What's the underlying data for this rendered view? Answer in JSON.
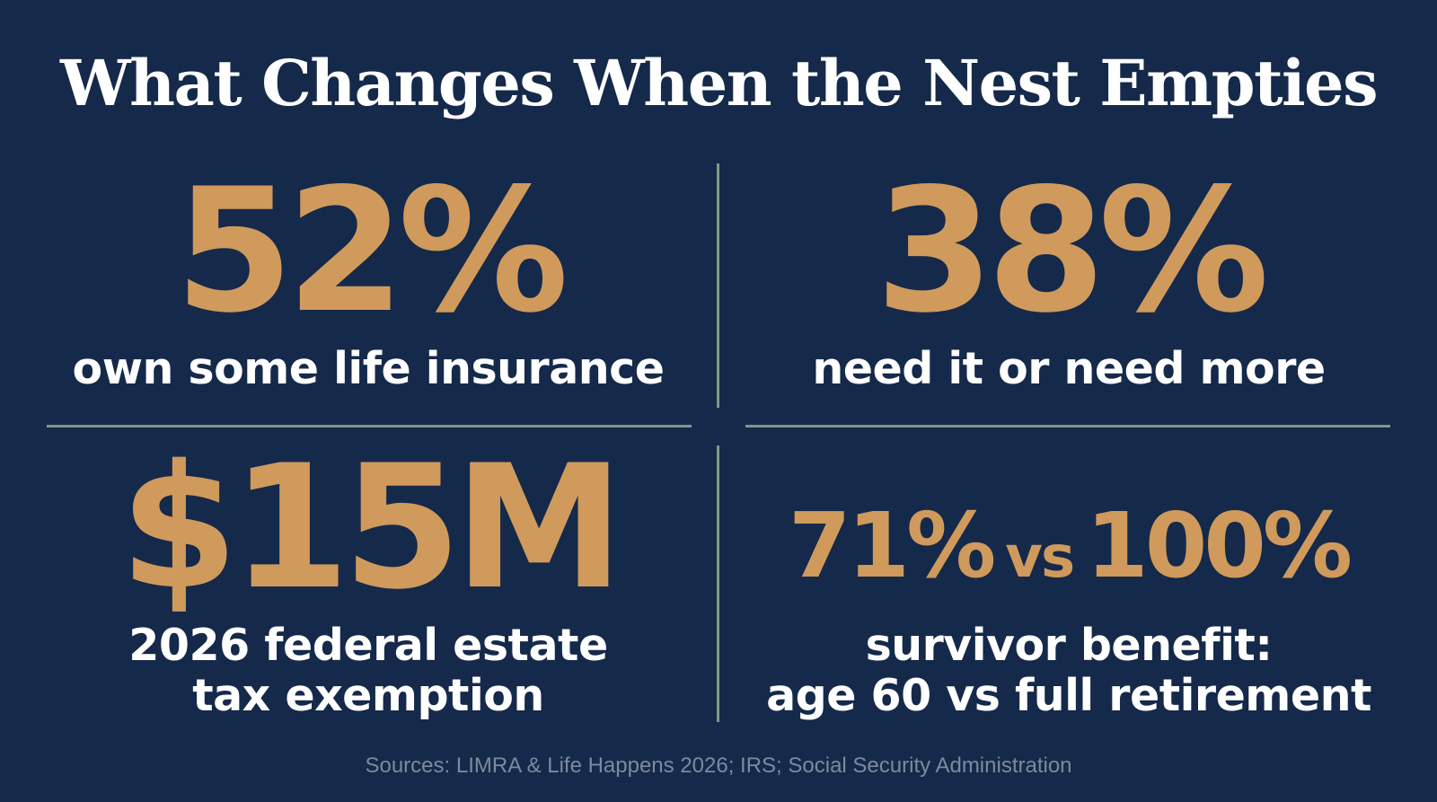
{
  "title": "What Changes When the Nest Empties",
  "colors": {
    "background": "#15294a",
    "accent": "#cf9a5c",
    "divider": "#7f9a86",
    "text": "#ffffff",
    "muted": "#7c8a9f"
  },
  "stats": [
    {
      "value": "52%",
      "caption_lines": [
        "own some life insurance"
      ]
    },
    {
      "value": "38%",
      "caption_lines": [
        "need it or need more"
      ]
    },
    {
      "value": "$15M",
      "caption_lines": [
        "2026 federal estate",
        "tax exemption"
      ]
    },
    {
      "value_left": "71%",
      "value_mid": "vs",
      "value_right": "100%",
      "caption_lines": [
        "survivor benefit:",
        "age 60 vs full retirement"
      ]
    }
  ],
  "sources": "Sources: LIMRA & Life Happens 2026; IRS; Social Security Administration"
}
